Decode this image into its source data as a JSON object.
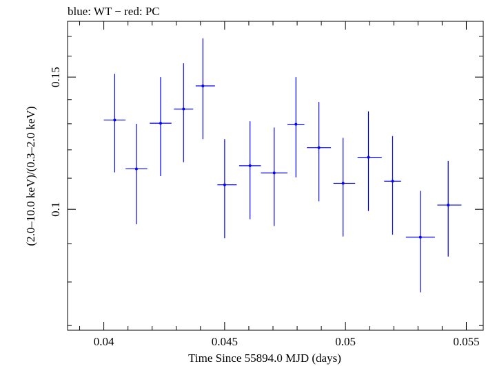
{
  "chart_data": {
    "type": "scatter",
    "title": "blue: WT − red: PC",
    "xlabel": "Time Since 55894.0 MJD (days)",
    "ylabel": "(2.0–10.0 keV)/(0.3–2.0 keV)",
    "xlim": [
      0.0385,
      0.0557
    ],
    "ylim": [
      0.069,
      0.178
    ],
    "log_y": true,
    "x_ticks": [
      {
        "value": 0.04,
        "label": "0.04"
      },
      {
        "value": 0.045,
        "label": "0.045"
      },
      {
        "value": 0.05,
        "label": "0.05"
      },
      {
        "value": 0.055,
        "label": "0.055"
      }
    ],
    "y_ticks": [
      {
        "value": 0.1,
        "label": "0.1"
      },
      {
        "value": 0.15,
        "label": "0.15"
      }
    ],
    "grid": false,
    "series": [
      {
        "color": "#0000ff",
        "points": [
          {
            "x": 0.04045,
            "xlo": 0.04,
            "xhi": 0.0409,
            "y": 0.1315,
            "ylo": 0.112,
            "yhi": 0.1515
          },
          {
            "x": 0.04135,
            "xlo": 0.0409,
            "xhi": 0.0418,
            "y": 0.1132,
            "ylo": 0.0955,
            "yhi": 0.13
          },
          {
            "x": 0.04235,
            "xlo": 0.0419,
            "xhi": 0.0428,
            "y": 0.1302,
            "ylo": 0.1107,
            "yhi": 0.15
          },
          {
            "x": 0.0433,
            "xlo": 0.0429,
            "xhi": 0.0437,
            "y": 0.136,
            "ylo": 0.1155,
            "yhi": 0.1565
          },
          {
            "x": 0.0441,
            "xlo": 0.0438,
            "xhi": 0.0446,
            "y": 0.146,
            "ylo": 0.124,
            "yhi": 0.169
          },
          {
            "x": 0.045,
            "xlo": 0.0447,
            "xhi": 0.0455,
            "y": 0.1078,
            "ylo": 0.0915,
            "yhi": 0.124
          },
          {
            "x": 0.04605,
            "xlo": 0.0456,
            "xhi": 0.0465,
            "y": 0.1143,
            "ylo": 0.097,
            "yhi": 0.131
          },
          {
            "x": 0.04705,
            "xlo": 0.0465,
            "xhi": 0.0476,
            "y": 0.1118,
            "ylo": 0.095,
            "yhi": 0.1285
          },
          {
            "x": 0.04795,
            "xlo": 0.0476,
            "xhi": 0.0483,
            "y": 0.1298,
            "ylo": 0.1103,
            "yhi": 0.15
          },
          {
            "x": 0.0489,
            "xlo": 0.0484,
            "xhi": 0.0494,
            "y": 0.1208,
            "ylo": 0.1025,
            "yhi": 0.139
          },
          {
            "x": 0.0499,
            "xlo": 0.0495,
            "xhi": 0.0504,
            "y": 0.1083,
            "ylo": 0.092,
            "yhi": 0.1245
          },
          {
            "x": 0.05095,
            "xlo": 0.0505,
            "xhi": 0.0515,
            "y": 0.1173,
            "ylo": 0.0995,
            "yhi": 0.135
          },
          {
            "x": 0.05195,
            "xlo": 0.0516,
            "xhi": 0.0523,
            "y": 0.109,
            "ylo": 0.0925,
            "yhi": 0.1252
          },
          {
            "x": 0.0531,
            "xlo": 0.0525,
            "xhi": 0.0537,
            "y": 0.0918,
            "ylo": 0.0775,
            "yhi": 0.1058
          },
          {
            "x": 0.05425,
            "xlo": 0.0538,
            "xhi": 0.0548,
            "y": 0.1013,
            "ylo": 0.0865,
            "yhi": 0.116
          }
        ]
      }
    ]
  }
}
